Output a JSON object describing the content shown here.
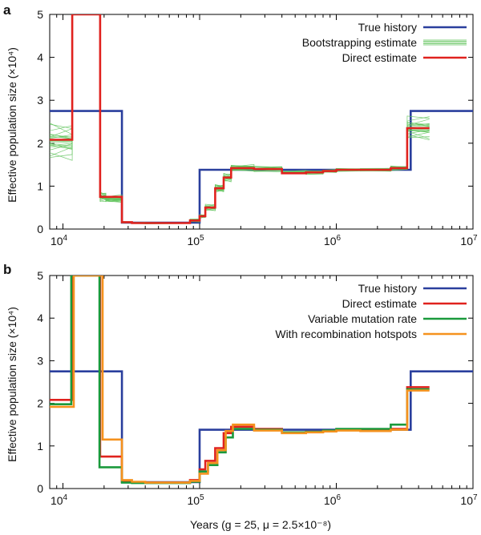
{
  "colors": {
    "true_history": "#2a3f9d",
    "bootstrap": "#5fc35a",
    "direct": "#e0221e",
    "variable_mutation": "#1a9a3c",
    "hotspots": "#f5921e"
  },
  "chart_data": [
    {
      "type": "line",
      "panel_label": "a",
      "xscale": "log",
      "xlim": [
        8000,
        10000000
      ],
      "ylim": [
        0,
        5
      ],
      "ylabel": "Effective population size (×10⁴)",
      "xlabel": "",
      "y_ticks": [
        "0",
        "1",
        "2",
        "3",
        "4",
        "5"
      ],
      "x_ticks": [
        {
          "value": 10000,
          "base": "10",
          "exp": "4"
        },
        {
          "value": 100000,
          "base": "10",
          "exp": "5"
        },
        {
          "value": 1000000,
          "base": "10",
          "exp": "6"
        },
        {
          "value": 10000000,
          "base": "10",
          "exp": "7"
        }
      ],
      "legend_position": "top-right",
      "series": [
        {
          "name": "True history",
          "color_key": "true_history",
          "x": [
            8000,
            27000,
            27000,
            100000,
            100000,
            3500000,
            3500000,
            10000000
          ],
          "y": [
            2.75,
            2.75,
            0.15,
            0.15,
            1.38,
            1.38,
            2.75,
            2.75
          ]
        },
        {
          "name": "Bootstrapping estimate",
          "color_key": "bootstrap",
          "style": "bootstrap",
          "x": [
            8000,
            11700,
            11700,
            18700,
            18700,
            20600,
            20600,
            27000,
            27000,
            32000,
            32000,
            40000,
            40000,
            85000,
            85000,
            100000,
            100000,
            110000,
            110000,
            130000,
            130000,
            150000,
            150000,
            170000,
            170000,
            250000,
            250000,
            400000,
            400000,
            600000,
            600000,
            800000,
            800000,
            1000000,
            1000000,
            1500000,
            1500000,
            2500000,
            2500000,
            3300000,
            3300000,
            4800000
          ],
          "y": [
            2.05,
            2.05,
            5.0,
            5.0,
            0.75,
            0.75,
            0.7,
            0.7,
            0.16,
            0.16,
            0.14,
            0.14,
            0.14,
            0.14,
            0.2,
            0.2,
            0.3,
            0.3,
            0.5,
            0.5,
            0.95,
            0.95,
            1.2,
            1.2,
            1.42,
            1.42,
            1.4,
            1.4,
            1.32,
            1.32,
            1.32,
            1.32,
            1.35,
            1.35,
            1.38,
            1.38,
            1.38,
            1.38,
            1.42,
            1.42,
            2.35,
            2.35
          ],
          "spread": [
            0.45,
            0.45,
            0,
            0,
            0.12,
            0.12,
            0.1,
            0.1,
            0.02,
            0.02,
            0.02,
            0.02,
            0.02,
            0.02,
            0.04,
            0.04,
            0.05,
            0.05,
            0.08,
            0.08,
            0.12,
            0.12,
            0.1,
            0.1,
            0.1,
            0.1,
            0.07,
            0.07,
            0.05,
            0.05,
            0.05,
            0.05,
            0.04,
            0.04,
            0.04,
            0.04,
            0.04,
            0.04,
            0.06,
            0.06,
            0.3,
            0.3
          ]
        },
        {
          "name": "Direct estimate",
          "color_key": "direct",
          "x": [
            8000,
            11700,
            11700,
            18700,
            18700,
            27000,
            27000,
            32000,
            32000,
            40000,
            40000,
            85000,
            85000,
            100000,
            100000,
            110000,
            110000,
            130000,
            130000,
            150000,
            150000,
            170000,
            170000,
            250000,
            250000,
            400000,
            400000,
            600000,
            600000,
            800000,
            800000,
            1000000,
            1000000,
            1500000,
            1500000,
            2500000,
            2500000,
            3300000,
            3300000,
            4800000
          ],
          "y": [
            2.08,
            2.08,
            5.0,
            5.0,
            0.75,
            0.75,
            0.16,
            0.16,
            0.14,
            0.14,
            0.14,
            0.14,
            0.2,
            0.2,
            0.3,
            0.3,
            0.5,
            0.5,
            0.95,
            0.95,
            1.2,
            1.2,
            1.42,
            1.42,
            1.4,
            1.4,
            1.3,
            1.3,
            1.32,
            1.32,
            1.35,
            1.35,
            1.38,
            1.38,
            1.38,
            1.38,
            1.42,
            1.42,
            2.35,
            2.35
          ]
        }
      ]
    },
    {
      "type": "line",
      "panel_label": "b",
      "xscale": "log",
      "xlim": [
        8000,
        10000000
      ],
      "ylim": [
        0,
        5
      ],
      "ylabel": "Effective population size (×10⁴)",
      "xlabel": "Years (g = 25, μ = 2.5×10⁻⁸)",
      "y_ticks": [
        "0",
        "1",
        "2",
        "3",
        "4",
        "5"
      ],
      "x_ticks": [
        {
          "value": 10000,
          "base": "10",
          "exp": "4"
        },
        {
          "value": 100000,
          "base": "10",
          "exp": "5"
        },
        {
          "value": 1000000,
          "base": "10",
          "exp": "6"
        },
        {
          "value": 10000000,
          "base": "10",
          "exp": "7"
        }
      ],
      "legend_position": "top-right",
      "series": [
        {
          "name": "True history",
          "color_key": "true_history",
          "x": [
            8000,
            27000,
            27000,
            100000,
            100000,
            3500000,
            3500000,
            10000000
          ],
          "y": [
            2.75,
            2.75,
            0.15,
            0.15,
            1.38,
            1.38,
            2.75,
            2.75
          ]
        },
        {
          "name": "Direct estimate",
          "color_key": "direct",
          "x": [
            8000,
            11700,
            11700,
            18700,
            18700,
            27000,
            27000,
            32000,
            32000,
            40000,
            40000,
            85000,
            85000,
            100000,
            100000,
            110000,
            110000,
            130000,
            130000,
            150000,
            150000,
            170000,
            170000,
            250000,
            250000,
            400000,
            400000,
            600000,
            600000,
            800000,
            800000,
            1000000,
            1000000,
            1500000,
            1500000,
            2500000,
            2500000,
            3300000,
            3300000,
            4800000
          ],
          "y": [
            2.08,
            2.08,
            5.0,
            5.0,
            0.75,
            0.75,
            0.16,
            0.16,
            0.14,
            0.14,
            0.14,
            0.14,
            0.2,
            0.2,
            0.45,
            0.45,
            0.65,
            0.65,
            0.95,
            0.95,
            1.3,
            1.3,
            1.45,
            1.45,
            1.4,
            1.4,
            1.32,
            1.32,
            1.33,
            1.33,
            1.35,
            1.35,
            1.38,
            1.38,
            1.38,
            1.38,
            1.4,
            1.4,
            2.38,
            2.38
          ]
        },
        {
          "name": "Variable mutation rate",
          "color_key": "variable_mutation",
          "x": [
            8000,
            11500,
            11500,
            18500,
            18500,
            27000,
            27000,
            32000,
            32000,
            40000,
            40000,
            85000,
            85000,
            100000,
            100000,
            115000,
            115000,
            135000,
            135000,
            155000,
            155000,
            175000,
            175000,
            250000,
            250000,
            400000,
            400000,
            600000,
            600000,
            800000,
            800000,
            1000000,
            1000000,
            1500000,
            1500000,
            2500000,
            2500000,
            3300000,
            3300000,
            4800000
          ],
          "y": [
            1.98,
            1.98,
            5.0,
            5.0,
            0.5,
            0.5,
            0.14,
            0.14,
            0.13,
            0.13,
            0.13,
            0.13,
            0.16,
            0.16,
            0.4,
            0.4,
            0.55,
            0.55,
            0.85,
            0.85,
            1.2,
            1.2,
            1.4,
            1.4,
            1.38,
            1.38,
            1.32,
            1.32,
            1.33,
            1.33,
            1.36,
            1.36,
            1.4,
            1.4,
            1.4,
            1.4,
            1.5,
            1.5,
            2.33,
            2.33
          ]
        },
        {
          "name": "With recombination hotspots",
          "color_key": "hotspots",
          "x": [
            8000,
            12000,
            12000,
            19500,
            19500,
            27000,
            27000,
            32000,
            32000,
            40000,
            40000,
            85000,
            85000,
            100000,
            100000,
            115000,
            115000,
            135000,
            135000,
            155000,
            155000,
            175000,
            175000,
            250000,
            250000,
            400000,
            400000,
            600000,
            600000,
            800000,
            800000,
            1000000,
            1000000,
            1500000,
            1500000,
            2500000,
            2500000,
            3300000,
            3300000,
            4800000
          ],
          "y": [
            1.92,
            1.92,
            5.0,
            5.0,
            1.15,
            1.15,
            0.2,
            0.2,
            0.16,
            0.16,
            0.14,
            0.14,
            0.18,
            0.18,
            0.35,
            0.35,
            0.6,
            0.6,
            0.9,
            0.9,
            1.35,
            1.35,
            1.5,
            1.5,
            1.36,
            1.36,
            1.3,
            1.3,
            1.32,
            1.32,
            1.34,
            1.34,
            1.36,
            1.36,
            1.35,
            1.35,
            1.38,
            1.38,
            2.3,
            2.3
          ]
        }
      ]
    }
  ]
}
